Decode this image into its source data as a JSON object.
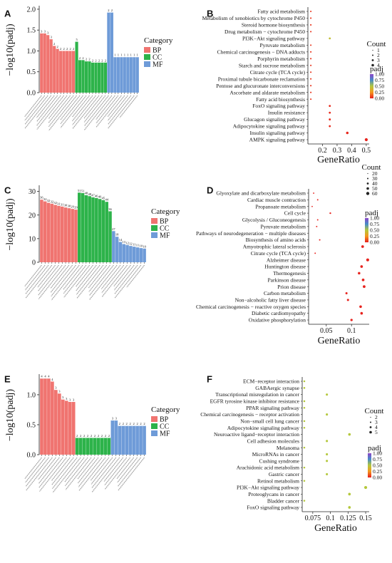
{
  "figure": {
    "panels": [
      {
        "id": "A",
        "label": "A",
        "kind": "bar",
        "ylabel": "−log10(padj)",
        "yticks": [
          "0.0",
          "0.5",
          "1.0",
          "1.5",
          "2.0"
        ],
        "ymax": 2.05,
        "legend": {
          "title": "Category",
          "items": [
            {
              "name": "BP",
              "color": "#F07470"
            },
            {
              "name": "CC",
              "color": "#2DB34A"
            },
            {
              "name": "MF",
              "color": "#6E9BD8"
            }
          ]
        },
        "groups": [
          {
            "cat": "BP",
            "values": [
              1.42,
              1.42,
              1.38,
              1.28,
              1.12,
              1.05,
              1.0,
              1.0,
              1.0,
              1.0,
              1.0
            ],
            "labels": [
              "3",
              "3",
              "3",
              "3",
              "2",
              "2",
              "2",
              "2",
              "2",
              "2",
              "2"
            ]
          },
          {
            "cat": "CC",
            "values": [
              1.22,
              0.78,
              0.78,
              0.75,
              0.75,
              0.72,
              0.72,
              0.72,
              0.72,
              0.72
            ],
            "labels": [
              "5",
              "2",
              "2",
              "2",
              "2",
              "2",
              "2",
              "2",
              "2",
              "2"
            ]
          },
          {
            "cat": "MF",
            "values": [
              1.92,
              1.92,
              0.85,
              0.85,
              0.85,
              0.85,
              0.85,
              0.85,
              0.85,
              0.85
            ],
            "labels": [
              "2",
              "2",
              "1",
              "1",
              "1",
              "1",
              "1",
              "1",
              "1",
              "1"
            ]
          }
        ]
      },
      {
        "id": "C",
        "label": "C",
        "kind": "bar",
        "ylabel": "−log10(padj)",
        "yticks": [
          "0",
          "10",
          "20",
          "30"
        ],
        "ymax": 32,
        "legend": {
          "title": "Category",
          "items": [
            {
              "name": "BP",
              "color": "#F07470"
            },
            {
              "name": "CC",
              "color": "#2DB34A"
            },
            {
              "name": "MF",
              "color": "#6E9BD8"
            }
          ]
        },
        "groups": [
          {
            "cat": "BP",
            "values": [
              26.5,
              25.8,
              25.2,
              24.8,
              24.3,
              23.9,
              23.6,
              23.2,
              22.9,
              22.6,
              22.3
            ],
            "labels": [
              "36",
              "32",
              "32",
              "32",
              "32",
              "31",
              "31",
              "30",
              "30",
              "29",
              "29"
            ]
          },
          {
            "cat": "CC",
            "values": [
              29.5,
              29.3,
              28.4,
              28.0,
              27.5,
              27.2,
              26.8,
              26.3,
              25.6,
              21.6
            ],
            "labels": [
              "51",
              "51",
              "48",
              "48",
              "47",
              "46",
              "46",
              "45",
              "44",
              "36"
            ]
          },
          {
            "cat": "MF",
            "values": [
              13.2,
              10.8,
              8.6,
              7.7,
              7.3,
              6.9,
              6.6,
              6.3,
              6.0,
              5.8
            ],
            "labels": [
              "27",
              "18",
              "14",
              "13",
              "12",
              "12",
              "11",
              "11",
              "10",
              "10"
            ]
          }
        ]
      },
      {
        "id": "E",
        "label": "E",
        "kind": "bar",
        "ylabel": "−log10(padj)",
        "yticks": [
          "0.0",
          "0.5",
          "1.0"
        ],
        "ymax": 1.32,
        "legend": {
          "title": "Category",
          "items": [
            {
              "name": "BP",
              "color": "#F07470"
            },
            {
              "name": "CC",
              "color": "#2DB34A"
            },
            {
              "name": "MF",
              "color": "#6E9BD8"
            }
          ]
        },
        "groups": [
          {
            "cat": "BP",
            "values": [
              1.27,
              1.27,
              1.27,
              1.22,
              1.08,
              1.02,
              0.92,
              0.9,
              0.88,
              0.88
            ],
            "labels": [
              "4",
              "4",
              "4",
              "4",
              "3",
              "3",
              "3",
              "3",
              "3",
              "3"
            ]
          },
          {
            "cat": "CC",
            "values": [
              0.28,
              0.28,
              0.28,
              0.28,
              0.28,
              0.28,
              0.28,
              0.28,
              0.28,
              0.28
            ],
            "labels": [
              "2",
              "2",
              "2",
              "2",
              "2",
              "2",
              "2",
              "2",
              "2",
              "2"
            ]
          },
          {
            "cat": "MF",
            "values": [
              0.57,
              0.57,
              0.48,
              0.48,
              0.48,
              0.48,
              0.48,
              0.48,
              0.48,
              0.48
            ],
            "labels": [
              "3",
              "3",
              "2",
              "2",
              "2",
              "2",
              "2",
              "2",
              "2",
              "2"
            ]
          }
        ]
      }
    ],
    "dotplots": [
      {
        "id": "B",
        "label": "B",
        "xlabel": "GeneRatio",
        "xticks": [
          0.2,
          0.3,
          0.4,
          0.5
        ],
        "xmin": 0.1,
        "xmax": 0.52,
        "count_title": "Count",
        "count_items": [
          "1",
          "2",
          "3",
          "4"
        ],
        "padj_title": "padj",
        "padj_ticks": [
          "1.00",
          "0.75",
          "0.50",
          "0.25",
          "0.00"
        ],
        "terms": [
          "Fatty acid metabolism",
          "Metabolism of xenobiotics by cytochrome P450",
          "Steroid hormone biosynthesis",
          "Drug metabolism − cytochrome P450",
          "PI3K−Akt signaling pathway",
          "Pyruvate metabolism",
          "Chemical carcinogenesis − DNA adducts",
          "Porphyrin metabolism",
          "Starch and sucrose metabolism",
          "Citrate cycle (TCA cycle)",
          "Proximal tubule bicarbonate reclamation",
          "Pentose and glucuronate interconversions",
          "Ascorbate and aldarate metabolism",
          "Fatty acid biosynthesis",
          "FoxO signaling pathway",
          "Insulin resistance",
          "Glucagon signaling pathway",
          "Adipocytokine signaling pathway",
          "Insulin signaling pathway",
          "AMPK signaling pathway"
        ],
        "points": [
          {
            "x": 0.12,
            "c": 1,
            "p": 0.05
          },
          {
            "x": 0.12,
            "c": 1,
            "p": 0.05
          },
          {
            "x": 0.12,
            "c": 1,
            "p": 0.05
          },
          {
            "x": 0.12,
            "c": 1,
            "p": 0.05
          },
          {
            "x": 0.25,
            "c": 2,
            "p": 0.45
          },
          {
            "x": 0.12,
            "c": 1,
            "p": 0.05
          },
          {
            "x": 0.12,
            "c": 1,
            "p": 0.05
          },
          {
            "x": 0.12,
            "c": 1,
            "p": 0.05
          },
          {
            "x": 0.12,
            "c": 1,
            "p": 0.05
          },
          {
            "x": 0.12,
            "c": 1,
            "p": 0.05
          },
          {
            "x": 0.12,
            "c": 1,
            "p": 0.05
          },
          {
            "x": 0.12,
            "c": 1,
            "p": 0.05
          },
          {
            "x": 0.12,
            "c": 1,
            "p": 0.05
          },
          {
            "x": 0.12,
            "c": 1,
            "p": 0.05
          },
          {
            "x": 0.25,
            "c": 2,
            "p": 0.03
          },
          {
            "x": 0.25,
            "c": 2,
            "p": 0.03
          },
          {
            "x": 0.25,
            "c": 2,
            "p": 0.03
          },
          {
            "x": 0.25,
            "c": 2,
            "p": 0.03
          },
          {
            "x": 0.37,
            "c": 3,
            "p": 0.02
          },
          {
            "x": 0.5,
            "c": 4,
            "p": 0.01
          }
        ]
      },
      {
        "id": "D",
        "label": "D",
        "xlabel": "GeneRatio",
        "xticks": [
          0.05,
          0.1
        ],
        "xmin": 0.015,
        "xmax": 0.135,
        "count_title": "Count",
        "count_items": [
          "20",
          "30",
          "40",
          "50",
          "60"
        ],
        "padj_title": "padj",
        "padj_ticks": [
          "1.00",
          "0.75",
          "0.50",
          "0.25",
          "0.00"
        ],
        "terms": [
          "Glyoxylate and dicarboxylate metabolism",
          "Cardiac muscle contraction",
          "Propanoate metabolism",
          "Cell cycle",
          "Glycolysis / Gluconeogenesis",
          "Pyruvate metabolism",
          "Pathways of neurodegeneration − multiple diseases",
          "Biosynthesis of amino acids",
          "Amyotrophic lateral sclerosis",
          "Citrate cycle (TCA cycle)",
          "Alzheimer disease",
          "Huntington disease",
          "Thermogenesis",
          "Parkinson disease",
          "Prion disease",
          "Carbon metabolism",
          "Non−alcoholic fatty liver disease",
          "Chemical carcinogenesis − reactive oxygen species",
          "Diabetic cardiomyopathy",
          "Oxidative phosphorylation"
        ],
        "points": [
          {
            "x": 0.025,
            "c": 10,
            "p": 0.01
          },
          {
            "x": 0.033,
            "c": 12,
            "p": 0.01
          },
          {
            "x": 0.022,
            "c": 9,
            "p": 0.01
          },
          {
            "x": 0.058,
            "c": 20,
            "p": 0.01
          },
          {
            "x": 0.033,
            "c": 12,
            "p": 0.01
          },
          {
            "x": 0.031,
            "c": 11,
            "p": 0.01
          },
          {
            "x": 0.13,
            "c": 55,
            "p": 0.01
          },
          {
            "x": 0.037,
            "c": 13,
            "p": 0.01
          },
          {
            "x": 0.122,
            "c": 50,
            "p": 0.01
          },
          {
            "x": 0.028,
            "c": 10,
            "p": 0.01
          },
          {
            "x": 0.132,
            "c": 60,
            "p": 0.01
          },
          {
            "x": 0.12,
            "c": 50,
            "p": 0.01
          },
          {
            "x": 0.115,
            "c": 45,
            "p": 0.01
          },
          {
            "x": 0.123,
            "c": 50,
            "p": 0.01
          },
          {
            "x": 0.125,
            "c": 52,
            "p": 0.01
          },
          {
            "x": 0.09,
            "c": 35,
            "p": 0.01
          },
          {
            "x": 0.093,
            "c": 36,
            "p": 0.01
          },
          {
            "x": 0.118,
            "c": 48,
            "p": 0.01
          },
          {
            "x": 0.12,
            "c": 48,
            "p": 0.01
          },
          {
            "x": 0.1,
            "c": 40,
            "p": 0.01
          }
        ]
      },
      {
        "id": "F",
        "label": "F",
        "xlabel": "GeneRatio",
        "xticks": [
          0.075,
          0.1,
          0.125,
          0.15
        ],
        "xmin": 0.06,
        "xmax": 0.155,
        "count_title": "Count",
        "count_items": [
          "2",
          "3",
          "4",
          "5"
        ],
        "padj_title": "padj",
        "padj_ticks": [
          "1.00",
          "0.75",
          "0.50",
          "0.25",
          "0.00"
        ],
        "terms": [
          "ECM−receptor interaction",
          "GABAergic synapse",
          "Transcriptional misregulation in cancer",
          "EGFR tyrosine kinase inhibitor resistance",
          "PPAR signaling pathway",
          "Chemical carcinogenesis − receptor activation",
          "Non−small cell lung cancer",
          "Adipocytokine signaling pathway",
          "Neuroactive ligand−receptor interaction",
          "Cell adhesion molecules",
          "Melanoma",
          "MicroRNAs in cancer",
          "Cushing syndrome",
          "Arachidonic acid metabolism",
          "Gastric cancer",
          "Retinol metabolism",
          "PI3K−Akt signaling pathway",
          "Proteoglycans in cancer",
          "Bladder cancer",
          "FoxO signaling pathway"
        ],
        "points": [
          {
            "x": 0.063,
            "c": 2,
            "p": 0.5
          },
          {
            "x": 0.063,
            "c": 2,
            "p": 0.5
          },
          {
            "x": 0.095,
            "c": 3,
            "p": 0.5
          },
          {
            "x": 0.063,
            "c": 2,
            "p": 0.5
          },
          {
            "x": 0.063,
            "c": 2,
            "p": 0.5
          },
          {
            "x": 0.095,
            "c": 3,
            "p": 0.5
          },
          {
            "x": 0.063,
            "c": 2,
            "p": 0.5
          },
          {
            "x": 0.063,
            "c": 2,
            "p": 0.5
          },
          {
            "x": 0.127,
            "c": 4,
            "p": 0.5
          },
          {
            "x": 0.095,
            "c": 3,
            "p": 0.5
          },
          {
            "x": 0.063,
            "c": 2,
            "p": 0.5
          },
          {
            "x": 0.095,
            "c": 3,
            "p": 0.5
          },
          {
            "x": 0.095,
            "c": 3,
            "p": 0.5
          },
          {
            "x": 0.063,
            "c": 2,
            "p": 0.5
          },
          {
            "x": 0.095,
            "c": 3,
            "p": 0.5
          },
          {
            "x": 0.063,
            "c": 2,
            "p": 0.5
          },
          {
            "x": 0.15,
            "c": 5,
            "p": 0.5
          },
          {
            "x": 0.127,
            "c": 4,
            "p": 0.5
          },
          {
            "x": 0.063,
            "c": 2,
            "p": 0.5
          },
          {
            "x": 0.127,
            "c": 4,
            "p": 0.5
          }
        ]
      }
    ]
  },
  "chart_data": [
    {
      "panel": "A",
      "type": "bar",
      "ylabel": "−log10(padj)",
      "legend": [
        "BP",
        "CC",
        "MF"
      ],
      "series": [
        {
          "name": "BP",
          "values": [
            1.42,
            1.42,
            1.38,
            1.28,
            1.12,
            1.05,
            1.0,
            1.0,
            1.0,
            1.0,
            1.0
          ]
        },
        {
          "name": "CC",
          "values": [
            1.22,
            0.78,
            0.78,
            0.75,
            0.75,
            0.72,
            0.72,
            0.72,
            0.72,
            0.72
          ]
        },
        {
          "name": "MF",
          "values": [
            1.92,
            1.92,
            0.85,
            0.85,
            0.85,
            0.85,
            0.85,
            0.85,
            0.85,
            0.85
          ]
        }
      ],
      "ylim": [
        0,
        2.05
      ]
    },
    {
      "panel": "B",
      "type": "scatter",
      "xlabel": "GeneRatio",
      "xlim": [
        0.1,
        0.52
      ],
      "note": "dot plot of KEGG terms; size=Count, color=padj"
    },
    {
      "panel": "C",
      "type": "bar",
      "ylabel": "−log10(padj)",
      "legend": [
        "BP",
        "CC",
        "MF"
      ],
      "series": [
        {
          "name": "BP",
          "values": [
            26.5,
            25.8,
            25.2,
            24.8,
            24.3,
            23.9,
            23.6,
            23.2,
            22.9,
            22.6,
            22.3
          ]
        },
        {
          "name": "CC",
          "values": [
            29.5,
            29.3,
            28.4,
            28.0,
            27.5,
            27.2,
            26.8,
            26.3,
            25.6,
            21.6
          ]
        },
        {
          "name": "MF",
          "values": [
            13.2,
            10.8,
            8.6,
            7.7,
            7.3,
            6.9,
            6.6,
            6.3,
            6.0,
            5.8
          ]
        }
      ],
      "ylim": [
        0,
        32
      ]
    },
    {
      "panel": "D",
      "type": "scatter",
      "xlabel": "GeneRatio",
      "xlim": [
        0.015,
        0.135
      ]
    },
    {
      "panel": "E",
      "type": "bar",
      "ylabel": "−log10(padj)",
      "legend": [
        "BP",
        "CC",
        "MF"
      ],
      "series": [
        {
          "name": "BP",
          "values": [
            1.27,
            1.27,
            1.27,
            1.22,
            1.08,
            1.02,
            0.92,
            0.9,
            0.88,
            0.88
          ]
        },
        {
          "name": "CC",
          "values": [
            0.28,
            0.28,
            0.28,
            0.28,
            0.28,
            0.28,
            0.28,
            0.28,
            0.28,
            0.28
          ]
        },
        {
          "name": "MF",
          "values": [
            0.57,
            0.57,
            0.48,
            0.48,
            0.48,
            0.48,
            0.48,
            0.48,
            0.48,
            0.48
          ]
        }
      ],
      "ylim": [
        0,
        1.32
      ]
    },
    {
      "panel": "F",
      "type": "scatter",
      "xlabel": "GeneRatio",
      "xlim": [
        0.06,
        0.155
      ]
    }
  ]
}
